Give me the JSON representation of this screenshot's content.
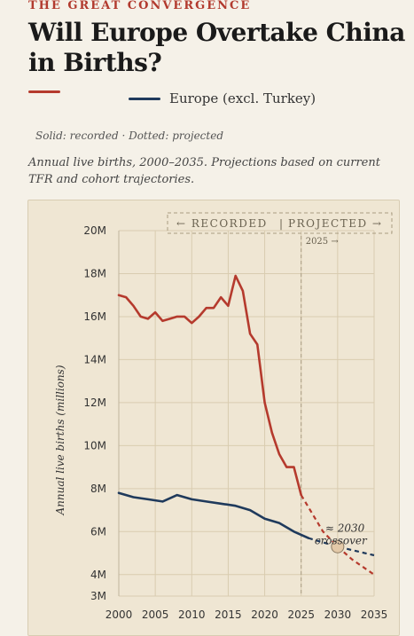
{
  "header": {
    "kicker": "THE GREAT CONVERGENCE",
    "title": "Will Europe Overtake China in Births?"
  },
  "legend": {
    "china_label": "",
    "europe_label": "Europe (excl. Turkey)"
  },
  "note": "Solid: recorded · Dotted: projected",
  "subtitle": "Annual live births, 2000–2035. Projections based on current TFR and cohort trajectories.",
  "colors": {
    "china": "#b53a2d",
    "europe": "#1f3a5c",
    "grid": "#d9ccb0",
    "divider": "#a89c82"
  },
  "chart_data": {
    "type": "line",
    "ylabel": "Annual live births (millions)",
    "ylim": [
      3,
      20
    ],
    "xlim": [
      2000,
      2035
    ],
    "grid": true,
    "y_ticks": [
      {
        "value": 3,
        "label": "3M"
      },
      {
        "value": 4,
        "label": "4M"
      },
      {
        "value": 6,
        "label": "6M"
      },
      {
        "value": 8,
        "label": "8M"
      },
      {
        "value": 10,
        "label": "10M"
      },
      {
        "value": 12,
        "label": "12M"
      },
      {
        "value": 14,
        "label": "14M"
      },
      {
        "value": 16,
        "label": "16M"
      },
      {
        "value": 18,
        "label": "18M"
      },
      {
        "value": 20,
        "label": "20M"
      }
    ],
    "x_ticks": [
      {
        "value": 2000,
        "label": "2000"
      },
      {
        "value": 2005,
        "label": "2005"
      },
      {
        "value": 2010,
        "label": "2010"
      },
      {
        "value": 2015,
        "label": "2015"
      },
      {
        "value": 2020,
        "label": "2020"
      },
      {
        "value": 2025,
        "label": "2025"
      },
      {
        "value": 2030,
        "label": "2030"
      },
      {
        "value": 2035,
        "label": "2035"
      }
    ],
    "banner_left": "← RECORDED",
    "banner_sep": "|",
    "banner_right": "PROJECTED →",
    "divider_year": 2025,
    "divider_label": "2025 →",
    "annotation": {
      "year_label": "≈ 2030",
      "text": "crossover",
      "x": 2030,
      "y": 5.3
    },
    "series": [
      {
        "key": "china",
        "recorded": [
          [
            2000,
            17.0
          ],
          [
            2001,
            16.9
          ],
          [
            2002,
            16.5
          ],
          [
            2003,
            16.0
          ],
          [
            2004,
            15.9
          ],
          [
            2005,
            16.2
          ],
          [
            2006,
            15.8
          ],
          [
            2007,
            15.9
          ],
          [
            2008,
            16.0
          ],
          [
            2009,
            16.0
          ],
          [
            2010,
            15.7
          ],
          [
            2011,
            16.0
          ],
          [
            2012,
            16.4
          ],
          [
            2013,
            16.4
          ],
          [
            2014,
            16.9
          ],
          [
            2015,
            16.5
          ],
          [
            2016,
            17.9
          ],
          [
            2017,
            17.2
          ],
          [
            2018,
            15.2
          ],
          [
            2019,
            14.7
          ],
          [
            2020,
            12.0
          ],
          [
            2021,
            10.6
          ],
          [
            2022,
            9.6
          ],
          [
            2023,
            9.0
          ],
          [
            2024,
            9.0
          ],
          [
            2025,
            7.7
          ]
        ],
        "projected": [
          [
            2025,
            7.7
          ],
          [
            2028,
            6.0
          ],
          [
            2030,
            5.3
          ],
          [
            2032,
            4.7
          ],
          [
            2035,
            4.0
          ]
        ]
      },
      {
        "key": "europe",
        "recorded": [
          [
            2000,
            7.8
          ],
          [
            2002,
            7.6
          ],
          [
            2004,
            7.5
          ],
          [
            2006,
            7.4
          ],
          [
            2008,
            7.7
          ],
          [
            2010,
            7.5
          ],
          [
            2012,
            7.4
          ],
          [
            2014,
            7.3
          ],
          [
            2016,
            7.2
          ],
          [
            2018,
            7.0
          ],
          [
            2020,
            6.6
          ],
          [
            2022,
            6.4
          ],
          [
            2024,
            6.0
          ],
          [
            2026,
            5.7
          ]
        ],
        "projected": [
          [
            2026,
            5.7
          ],
          [
            2030,
            5.3
          ],
          [
            2035,
            4.9
          ]
        ]
      }
    ]
  }
}
